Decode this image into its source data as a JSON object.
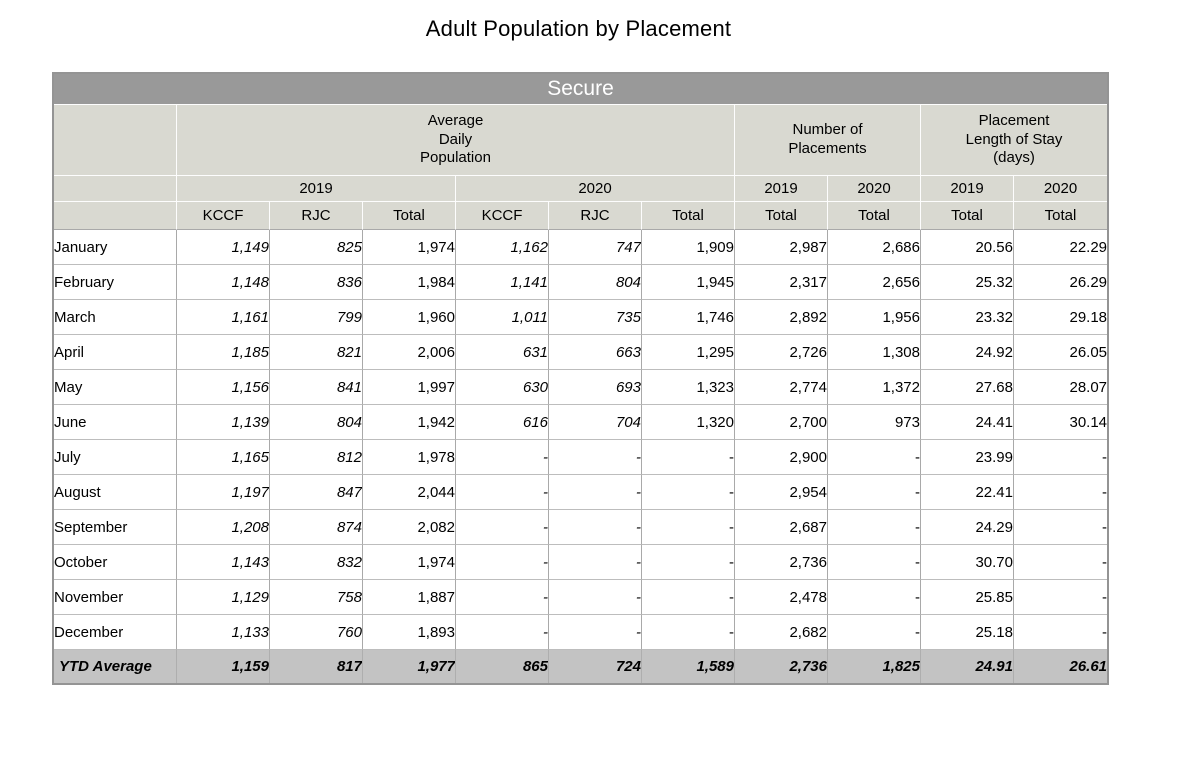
{
  "page_title": "Adult Population by Placement",
  "table": {
    "band_title": "Secure",
    "corner_label": "",
    "groups": {
      "adp": "Average\nDaily\nPopulation",
      "placements": "Number of\nPlacements",
      "los": "Placement\nLength of Stay\n(days)"
    },
    "year_cells": [
      "2019",
      "2020",
      "2019",
      "2020",
      "2019",
      "2020"
    ],
    "sub_headers": [
      "KCCF",
      "RJC",
      "Total",
      "KCCF",
      "RJC",
      "Total",
      "Total",
      "Total",
      "Total",
      "Total"
    ],
    "italic_value_columns": [
      0,
      1,
      3,
      4
    ],
    "rows": [
      {
        "label": "January",
        "values": [
          "1,149",
          "825",
          "1,974",
          "1,162",
          "747",
          "1,909",
          "2,987",
          "2,686",
          "20.56",
          "22.29"
        ]
      },
      {
        "label": "February",
        "values": [
          "1,148",
          "836",
          "1,984",
          "1,141",
          "804",
          "1,945",
          "2,317",
          "2,656",
          "25.32",
          "26.29"
        ]
      },
      {
        "label": "March",
        "values": [
          "1,161",
          "799",
          "1,960",
          "1,011",
          "735",
          "1,746",
          "2,892",
          "1,956",
          "23.32",
          "29.18"
        ]
      },
      {
        "label": "April",
        "values": [
          "1,185",
          "821",
          "2,006",
          "631",
          "663",
          "1,295",
          "2,726",
          "1,308",
          "24.92",
          "26.05"
        ]
      },
      {
        "label": "May",
        "values": [
          "1,156",
          "841",
          "1,997",
          "630",
          "693",
          "1,323",
          "2,774",
          "1,372",
          "27.68",
          "28.07"
        ]
      },
      {
        "label": "June",
        "values": [
          "1,139",
          "804",
          "1,942",
          "616",
          "704",
          "1,320",
          "2,700",
          "973",
          "24.41",
          "30.14"
        ]
      },
      {
        "label": "July",
        "values": [
          "1,165",
          "812",
          "1,978",
          "-",
          "-",
          "-",
          "2,900",
          "-",
          "23.99",
          "-"
        ]
      },
      {
        "label": "August",
        "values": [
          "1,197",
          "847",
          "2,044",
          "-",
          "-",
          "-",
          "2,954",
          "-",
          "22.41",
          "-"
        ]
      },
      {
        "label": "September",
        "values": [
          "1,208",
          "874",
          "2,082",
          "-",
          "-",
          "-",
          "2,687",
          "-",
          "24.29",
          "-"
        ]
      },
      {
        "label": "October",
        "values": [
          "1,143",
          "832",
          "1,974",
          "-",
          "-",
          "-",
          "2,736",
          "-",
          "30.70",
          "-"
        ]
      },
      {
        "label": "November",
        "values": [
          "1,129",
          "758",
          "1,887",
          "-",
          "-",
          "-",
          "2,478",
          "-",
          "25.85",
          "-"
        ]
      },
      {
        "label": "December",
        "values": [
          "1,133",
          "760",
          "1,893",
          "-",
          "-",
          "-",
          "2,682",
          "-",
          "25.18",
          "-"
        ]
      }
    ],
    "ytd": {
      "label": "YTD Average",
      "values": [
        "1,159",
        "817",
        "1,977",
        "865",
        "724",
        "1,589",
        "2,736",
        "1,825",
        "24.91",
        "26.61"
      ]
    },
    "colors": {
      "band_bg": "#999999",
      "header_bg": "#d9d9d1",
      "ytd_bg": "#c3c3c3",
      "grid": "#a9a9a9",
      "outer_border": "#949494"
    }
  }
}
